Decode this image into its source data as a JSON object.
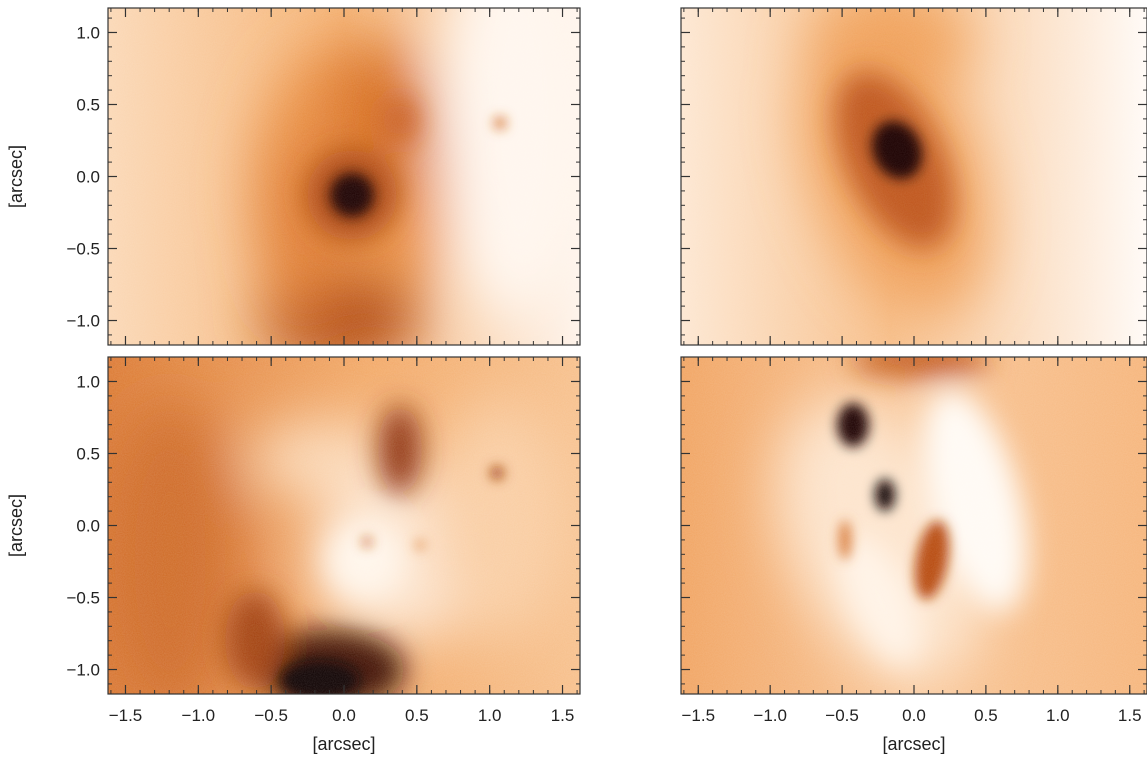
{
  "figure": {
    "panels": [
      {
        "id": "top-left",
        "row": 0,
        "col": 0
      },
      {
        "id": "top-right",
        "row": 0,
        "col": 1
      },
      {
        "id": "bottom-left",
        "row": 1,
        "col": 0
      },
      {
        "id": "bottom-right",
        "row": 1,
        "col": 1
      }
    ],
    "x_axis": {
      "label": "[arcsec]",
      "ticks": [
        -1.5,
        -1.0,
        -0.5,
        0.0,
        0.5,
        1.0,
        1.5
      ],
      "tick_labels": [
        "−1.5",
        "−1.0",
        "−0.5",
        "0.0",
        "0.5",
        "1.0",
        "1.5"
      ],
      "range": [
        -1.62,
        1.62
      ]
    },
    "y_axis": {
      "label": "[arcsec]",
      "ticks": [
        1.0,
        0.5,
        0.0,
        -0.5,
        -1.0
      ],
      "tick_labels": [
        "1.0",
        "0.5",
        "0.0",
        "−0.5",
        "−1.0"
      ],
      "range": [
        -1.17,
        1.17
      ]
    },
    "colormap": [
      "#ffffff",
      "#f3a055",
      "#b54a10",
      "#000000"
    ]
  }
}
